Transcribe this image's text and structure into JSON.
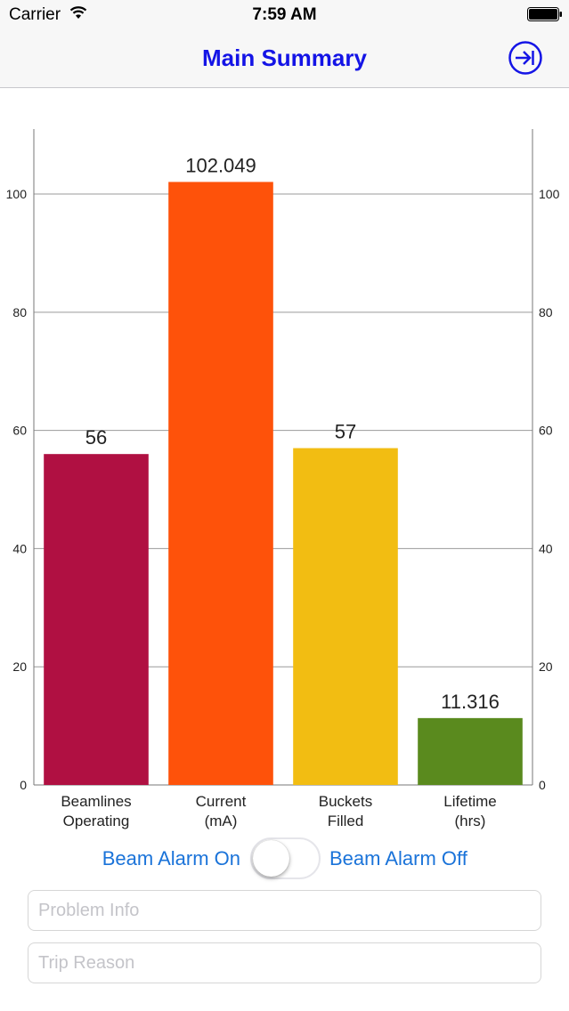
{
  "status_bar": {
    "carrier": "Carrier",
    "time": "7:59 AM",
    "wifi_icon": "wifi-icon",
    "battery_icon": "battery-full-icon"
  },
  "nav_bar": {
    "title": "Main Summary",
    "exit_icon": "exit-arrow-circle-icon"
  },
  "chart_data": {
    "type": "bar",
    "categories": [
      "Beamlines\nOperating",
      "Current\n(mA)",
      "Buckets\nFilled",
      "Lifetime\n(hrs)"
    ],
    "values": [
      56,
      102.049,
      57,
      11.316
    ],
    "value_labels": [
      "56",
      "102.049",
      "57",
      "11.316"
    ],
    "colors": [
      "#b01042",
      "#fe520a",
      "#f2bd12",
      "#5a8a1e"
    ],
    "ylim": [
      0,
      111
    ],
    "y_ticks": [
      0,
      20,
      40,
      60,
      80,
      100
    ],
    "y_axes": [
      "left",
      "right"
    ],
    "grid": true,
    "title": "",
    "xlabel": "",
    "ylabel": ""
  },
  "alarm": {
    "on_label": "Beam Alarm On",
    "off_label": "Beam Alarm Off",
    "toggle_on": false
  },
  "fields": {
    "problem_info": {
      "value": "",
      "placeholder": "Problem Info"
    },
    "trip_reason": {
      "value": "",
      "placeholder": "Trip Reason"
    }
  },
  "colors": {
    "nav_title": "#1414e6",
    "link": "#1a73d9",
    "bar_background": "#f7f7f7"
  }
}
